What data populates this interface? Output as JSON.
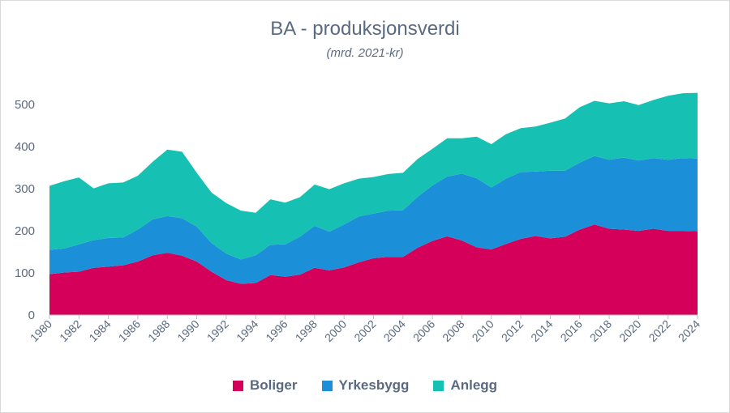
{
  "chart_data": {
    "type": "area",
    "stacked": true,
    "title": "BA - produksjonsverdi",
    "subtitle": "(mrd. 2021-kr)",
    "ylim": [
      0,
      560
    ],
    "yticks": [
      0,
      100,
      200,
      300,
      400,
      500
    ],
    "xlim": [
      1980,
      2024
    ],
    "xticks": [
      1980,
      1982,
      1984,
      1986,
      1988,
      1990,
      1992,
      1994,
      1996,
      1998,
      2000,
      2002,
      2004,
      2006,
      2008,
      2010,
      2012,
      2014,
      2016,
      2018,
      2020,
      2022,
      2024
    ],
    "grid": false,
    "legend_position": "bottom",
    "x": [
      1980,
      1981,
      1982,
      1983,
      1984,
      1985,
      1986,
      1987,
      1988,
      1989,
      1990,
      1991,
      1992,
      1993,
      1994,
      1995,
      1996,
      1997,
      1998,
      1999,
      2000,
      2001,
      2002,
      2003,
      2004,
      2005,
      2006,
      2007,
      2008,
      2009,
      2010,
      2011,
      2012,
      2013,
      2014,
      2015,
      2016,
      2017,
      2018,
      2019,
      2020,
      2021,
      2022,
      2023,
      2024
    ],
    "series": [
      {
        "name": "Boliger",
        "color": "#d4005a",
        "values": [
          97,
          101,
          103,
          112,
          115,
          118,
          127,
          142,
          148,
          141,
          127,
          103,
          83,
          74,
          76,
          95,
          91,
          96,
          112,
          106,
          113,
          125,
          135,
          138,
          138,
          160,
          176,
          187,
          177,
          161,
          156,
          169,
          181,
          188,
          182,
          186,
          203,
          215,
          205,
          203,
          200,
          205,
          200,
          200,
          199
        ]
      },
      {
        "name": "Yrkesbygg",
        "color": "#1b8fd8",
        "values": [
          58,
          57,
          65,
          66,
          68,
          66,
          76,
          85,
          87,
          89,
          83,
          68,
          63,
          58,
          66,
          72,
          77,
          90,
          100,
          92,
          102,
          109,
          106,
          110,
          111,
          121,
          132,
          142,
          159,
          164,
          147,
          155,
          159,
          153,
          161,
          157,
          159,
          163,
          164,
          171,
          167,
          168,
          169,
          173,
          173
        ]
      },
      {
        "name": "Anlegg",
        "color": "#16c1b3",
        "values": [
          152,
          160,
          159,
          123,
          130,
          131,
          128,
          137,
          158,
          158,
          128,
          120,
          120,
          116,
          101,
          108,
          99,
          94,
          98,
          101,
          98,
          90,
          87,
          87,
          89,
          90,
          87,
          91,
          84,
          99,
          103,
          106,
          104,
          107,
          114,
          124,
          132,
          131,
          134,
          134,
          132,
          138,
          152,
          154,
          156
        ]
      }
    ]
  }
}
